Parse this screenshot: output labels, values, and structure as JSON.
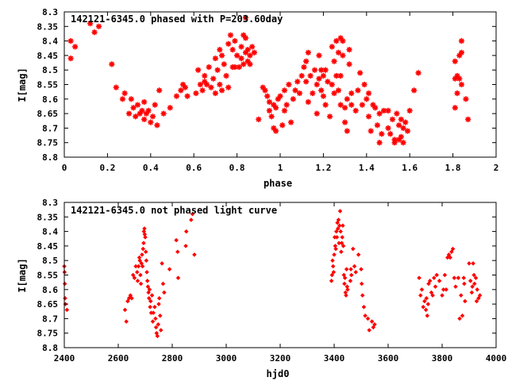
{
  "chart_data": [
    {
      "type": "scatter",
      "title": "142121-6345.0 phased with P=203.60day",
      "xlabel": "phase",
      "ylabel": "I[mag]",
      "xlim": [
        0,
        2
      ],
      "ylim": [
        8.3,
        8.8
      ],
      "y_inverted": true,
      "grid": false,
      "marker": "asterisk",
      "color": "#ff0000",
      "x_ticks": [
        "0",
        "0.2",
        "0.4",
        "0.6",
        "0.8",
        "1",
        "1.2",
        "1.4",
        "1.6",
        "1.8",
        "2"
      ],
      "y_ticks": [
        "8.3",
        "8.35",
        "8.4",
        "8.45",
        "8.5",
        "8.55",
        "8.6",
        "8.65",
        "8.7",
        "8.75",
        "8.8"
      ],
      "points": [
        [
          0.03,
          8.4
        ],
        [
          0.03,
          8.46
        ],
        [
          0.05,
          8.42
        ],
        [
          0.12,
          8.34
        ],
        [
          0.14,
          8.37
        ],
        [
          0.16,
          8.35
        ],
        [
          0.22,
          8.48
        ],
        [
          0.24,
          8.56
        ],
        [
          0.27,
          8.6
        ],
        [
          0.28,
          8.58
        ],
        [
          0.3,
          8.65
        ],
        [
          0.31,
          8.6
        ],
        [
          0.32,
          8.63
        ],
        [
          0.33,
          8.66
        ],
        [
          0.34,
          8.62
        ],
        [
          0.35,
          8.65
        ],
        [
          0.36,
          8.64
        ],
        [
          0.37,
          8.61
        ],
        [
          0.37,
          8.67
        ],
        [
          0.38,
          8.65
        ],
        [
          0.39,
          8.64
        ],
        [
          0.4,
          8.68
        ],
        [
          0.41,
          8.66
        ],
        [
          0.42,
          8.62
        ],
        [
          0.43,
          8.69
        ],
        [
          0.44,
          8.57
        ],
        [
          0.46,
          8.65
        ],
        [
          0.49,
          8.63
        ],
        [
          0.52,
          8.59
        ],
        [
          0.54,
          8.57
        ],
        [
          0.55,
          8.55
        ],
        [
          0.56,
          8.56
        ],
        [
          0.57,
          8.59
        ],
        [
          0.61,
          8.58
        ],
        [
          0.62,
          8.5
        ],
        [
          0.63,
          8.55
        ],
        [
          0.64,
          8.57
        ],
        [
          0.65,
          8.54
        ],
        [
          0.65,
          8.52
        ],
        [
          0.66,
          8.55
        ],
        [
          0.67,
          8.49
        ],
        [
          0.68,
          8.56
        ],
        [
          0.69,
          8.53
        ],
        [
          0.7,
          8.46
        ],
        [
          0.7,
          8.58
        ],
        [
          0.71,
          8.5
        ],
        [
          0.72,
          8.55
        ],
        [
          0.72,
          8.43
        ],
        [
          0.73,
          8.57
        ],
        [
          0.73,
          8.45
        ],
        [
          0.74,
          8.48
        ],
        [
          0.75,
          8.52
        ],
        [
          0.76,
          8.41
        ],
        [
          0.76,
          8.56
        ],
        [
          0.77,
          8.38
        ],
        [
          0.78,
          8.49
        ],
        [
          0.78,
          8.43
        ],
        [
          0.79,
          8.4
        ],
        [
          0.79,
          8.49
        ],
        [
          0.8,
          8.45
        ],
        [
          0.81,
          8.49
        ],
        [
          0.82,
          8.46
        ],
        [
          0.82,
          8.42
        ],
        [
          0.83,
          8.48
        ],
        [
          0.83,
          8.38
        ],
        [
          0.84,
          8.44
        ],
        [
          0.84,
          8.32
        ],
        [
          0.84,
          8.39
        ],
        [
          0.85,
          8.47
        ],
        [
          0.85,
          8.43
        ],
        [
          0.86,
          8.45
        ],
        [
          0.86,
          8.48
        ],
        [
          0.87,
          8.42
        ],
        [
          0.88,
          8.44
        ],
        [
          0.9,
          8.67
        ],
        [
          0.92,
          8.56
        ],
        [
          0.93,
          8.57
        ],
        [
          0.94,
          8.59
        ],
        [
          0.95,
          8.64
        ],
        [
          0.95,
          8.61
        ],
        [
          0.96,
          8.66
        ],
        [
          0.97,
          8.62
        ],
        [
          0.97,
          8.7
        ],
        [
          0.98,
          8.71
        ],
        [
          0.98,
          8.63
        ],
        [
          0.99,
          8.6
        ],
        [
          1.0,
          8.59
        ],
        [
          1.01,
          8.69
        ],
        [
          1.02,
          8.64
        ],
        [
          1.02,
          8.57
        ],
        [
          1.03,
          8.62
        ],
        [
          1.04,
          8.55
        ],
        [
          1.05,
          8.68
        ],
        [
          1.06,
          8.6
        ],
        [
          1.07,
          8.57
        ],
        [
          1.08,
          8.54
        ],
        [
          1.09,
          8.58
        ],
        [
          1.1,
          8.52
        ],
        [
          1.11,
          8.49
        ],
        [
          1.12,
          8.54
        ],
        [
          1.12,
          8.47
        ],
        [
          1.13,
          8.61
        ],
        [
          1.13,
          8.44
        ],
        [
          1.14,
          8.52
        ],
        [
          1.15,
          8.58
        ],
        [
          1.16,
          8.5
        ],
        [
          1.17,
          8.55
        ],
        [
          1.17,
          8.65
        ],
        [
          1.18,
          8.53
        ],
        [
          1.18,
          8.45
        ],
        [
          1.19,
          8.5
        ],
        [
          1.19,
          8.57
        ],
        [
          1.2,
          8.52
        ],
        [
          1.2,
          8.59
        ],
        [
          1.21,
          8.5
        ],
        [
          1.21,
          8.62
        ],
        [
          1.22,
          8.54
        ],
        [
          1.23,
          8.66
        ],
        [
          1.24,
          8.42
        ],
        [
          1.24,
          8.55
        ],
        [
          1.25,
          8.58
        ],
        [
          1.25,
          8.47
        ],
        [
          1.26,
          8.52
        ],
        [
          1.26,
          8.4
        ],
        [
          1.27,
          8.44
        ],
        [
          1.27,
          8.57
        ],
        [
          1.28,
          8.39
        ],
        [
          1.28,
          8.62
        ],
        [
          1.28,
          8.52
        ],
        [
          1.29,
          8.4
        ],
        [
          1.29,
          8.45
        ],
        [
          1.3,
          8.68
        ],
        [
          1.3,
          8.63
        ],
        [
          1.31,
          8.71
        ],
        [
          1.31,
          8.6
        ],
        [
          1.32,
          8.43
        ],
        [
          1.32,
          8.48
        ],
        [
          1.33,
          8.58
        ],
        [
          1.33,
          8.62
        ],
        [
          1.35,
          8.64
        ],
        [
          1.36,
          8.57
        ],
        [
          1.37,
          8.51
        ],
        [
          1.38,
          8.62
        ],
        [
          1.39,
          8.55
        ],
        [
          1.4,
          8.6
        ],
        [
          1.41,
          8.58
        ],
        [
          1.41,
          8.66
        ],
        [
          1.42,
          8.71
        ],
        [
          1.43,
          8.62
        ],
        [
          1.44,
          8.63
        ],
        [
          1.45,
          8.69
        ],
        [
          1.46,
          8.75
        ],
        [
          1.46,
          8.65
        ],
        [
          1.47,
          8.72
        ],
        [
          1.48,
          8.64
        ],
        [
          1.5,
          8.64
        ],
        [
          1.5,
          8.7
        ],
        [
          1.51,
          8.72
        ],
        [
          1.52,
          8.67
        ],
        [
          1.53,
          8.74
        ],
        [
          1.53,
          8.75
        ],
        [
          1.54,
          8.65
        ],
        [
          1.55,
          8.69
        ],
        [
          1.55,
          8.74
        ],
        [
          1.56,
          8.73
        ],
        [
          1.56,
          8.67
        ],
        [
          1.57,
          8.75
        ],
        [
          1.57,
          8.7
        ],
        [
          1.58,
          8.68
        ],
        [
          1.59,
          8.71
        ],
        [
          1.6,
          8.64
        ],
        [
          1.62,
          8.57
        ],
        [
          1.64,
          8.51
        ],
        [
          1.81,
          8.63
        ],
        [
          1.81,
          8.53
        ],
        [
          1.81,
          8.47
        ],
        [
          1.82,
          8.52
        ],
        [
          1.82,
          8.58
        ],
        [
          1.83,
          8.53
        ],
        [
          1.83,
          8.45
        ],
        [
          1.84,
          8.4
        ],
        [
          1.84,
          8.44
        ],
        [
          1.84,
          8.55
        ],
        [
          1.86,
          8.6
        ],
        [
          1.87,
          8.67
        ]
      ]
    },
    {
      "type": "scatter",
      "title": "142121-6345.0 not phased light curve",
      "xlabel": "hjd0",
      "ylabel": "I[mag]",
      "xlim": [
        2400,
        4000
      ],
      "ylim": [
        8.3,
        8.8
      ],
      "y_inverted": true,
      "grid": false,
      "marker": "diamond",
      "color": "#ff0000",
      "x_ticks": [
        "2400",
        "2600",
        "2800",
        "3000",
        "3200",
        "3400",
        "3600",
        "3800",
        "4000"
      ],
      "y_ticks": [
        "8.3",
        "8.35",
        "8.4",
        "8.45",
        "8.5",
        "8.55",
        "8.6",
        "8.65",
        "8.7",
        "8.75",
        "8.8"
      ],
      "points": [
        [
          2400,
          8.52
        ],
        [
          2401,
          8.54
        ],
        [
          2402,
          8.58
        ],
        [
          2403,
          8.63
        ],
        [
          2404,
          8.65
        ],
        [
          2410,
          8.67
        ],
        [
          2625,
          8.67
        ],
        [
          2630,
          8.71
        ],
        [
          2635,
          8.64
        ],
        [
          2640,
          8.63
        ],
        [
          2645,
          8.62
        ],
        [
          2650,
          8.63
        ],
        [
          2655,
          8.55
        ],
        [
          2660,
          8.56
        ],
        [
          2665,
          8.52
        ],
        [
          2670,
          8.54
        ],
        [
          2672,
          8.57
        ],
        [
          2675,
          8.52
        ],
        [
          2678,
          8.49
        ],
        [
          2680,
          8.5
        ],
        [
          2682,
          8.55
        ],
        [
          2684,
          8.58
        ],
        [
          2686,
          8.51
        ],
        [
          2688,
          8.48
        ],
        [
          2690,
          8.52
        ],
        [
          2692,
          8.46
        ],
        [
          2694,
          8.44
        ],
        [
          2695,
          8.4
        ],
        [
          2697,
          8.39
        ],
        [
          2698,
          8.41
        ],
        [
          2700,
          8.42
        ],
        [
          2702,
          8.47
        ],
        [
          2704,
          8.5
        ],
        [
          2706,
          8.54
        ],
        [
          2708,
          8.57
        ],
        [
          2710,
          8.59
        ],
        [
          2712,
          8.61
        ],
        [
          2714,
          8.63
        ],
        [
          2716,
          8.6
        ],
        [
          2718,
          8.66
        ],
        [
          2720,
          8.64
        ],
        [
          2722,
          8.68
        ],
        [
          2725,
          8.62
        ],
        [
          2728,
          8.71
        ],
        [
          2730,
          8.68
        ],
        [
          2735,
          8.66
        ],
        [
          2738,
          8.7
        ],
        [
          2740,
          8.73
        ],
        [
          2742,
          8.75
        ],
        [
          2745,
          8.76
        ],
        [
          2748,
          8.72
        ],
        [
          2750,
          8.65
        ],
        [
          2752,
          8.63
        ],
        [
          2755,
          8.69
        ],
        [
          2758,
          8.74
        ],
        [
          2762,
          8.51
        ],
        [
          2766,
          8.58
        ],
        [
          2770,
          8.61
        ],
        [
          2790,
          8.53
        ],
        [
          2815,
          8.43
        ],
        [
          2820,
          8.47
        ],
        [
          2822,
          8.56
        ],
        [
          2850,
          8.45
        ],
        [
          2852,
          8.4
        ],
        [
          2870,
          8.36
        ],
        [
          2875,
          8.34
        ],
        [
          2882,
          8.48
        ],
        [
          3390,
          8.57
        ],
        [
          3392,
          8.55
        ],
        [
          3394,
          8.5
        ],
        [
          3396,
          8.52
        ],
        [
          3398,
          8.54
        ],
        [
          3400,
          8.48
        ],
        [
          3402,
          8.42
        ],
        [
          3404,
          8.45
        ],
        [
          3406,
          8.46
        ],
        [
          3408,
          8.4
        ],
        [
          3410,
          8.42
        ],
        [
          3412,
          8.37
        ],
        [
          3414,
          8.39
        ],
        [
          3416,
          8.36
        ],
        [
          3418,
          8.44
        ],
        [
          3420,
          8.38
        ],
        [
          3422,
          8.33
        ],
        [
          3424,
          8.4
        ],
        [
          3426,
          8.47
        ],
        [
          3428,
          8.44
        ],
        [
          3430,
          8.42
        ],
        [
          3432,
          8.38
        ],
        [
          3434,
          8.45
        ],
        [
          3436,
          8.55
        ],
        [
          3438,
          8.58
        ],
        [
          3440,
          8.56
        ],
        [
          3442,
          8.61
        ],
        [
          3444,
          8.62
        ],
        [
          3446,
          8.53
        ],
        [
          3448,
          8.59
        ],
        [
          3450,
          8.6
        ],
        [
          3460,
          8.57
        ],
        [
          3462,
          8.53
        ],
        [
          3464,
          8.55
        ],
        [
          3470,
          8.46
        ],
        [
          3475,
          8.52
        ],
        [
          3480,
          8.54
        ],
        [
          3490,
          8.48
        ],
        [
          3500,
          8.53
        ],
        [
          3502,
          8.58
        ],
        [
          3505,
          8.62
        ],
        [
          3510,
          8.66
        ],
        [
          3515,
          8.69
        ],
        [
          3525,
          8.7
        ],
        [
          3530,
          8.74
        ],
        [
          3540,
          8.71
        ],
        [
          3545,
          8.73
        ],
        [
          3550,
          8.72
        ],
        [
          3715,
          8.56
        ],
        [
          3720,
          8.62
        ],
        [
          3725,
          8.6
        ],
        [
          3730,
          8.66
        ],
        [
          3735,
          8.64
        ],
        [
          3740,
          8.67
        ],
        [
          3742,
          8.63
        ],
        [
          3745,
          8.69
        ],
        [
          3748,
          8.65
        ],
        [
          3750,
          8.58
        ],
        [
          3755,
          8.57
        ],
        [
          3760,
          8.61
        ],
        [
          3765,
          8.62
        ],
        [
          3770,
          8.56
        ],
        [
          3775,
          8.59
        ],
        [
          3780,
          8.55
        ],
        [
          3790,
          8.57
        ],
        [
          3800,
          8.62
        ],
        [
          3805,
          8.6
        ],
        [
          3810,
          8.55
        ],
        [
          3815,
          8.6
        ],
        [
          3820,
          8.49
        ],
        [
          3825,
          8.48
        ],
        [
          3830,
          8.49
        ],
        [
          3835,
          8.47
        ],
        [
          3840,
          8.46
        ],
        [
          3845,
          8.56
        ],
        [
          3850,
          8.59
        ],
        [
          3860,
          8.56
        ],
        [
          3865,
          8.7
        ],
        [
          3870,
          8.62
        ],
        [
          3875,
          8.69
        ],
        [
          3880,
          8.56
        ],
        [
          3882,
          8.58
        ],
        [
          3885,
          8.64
        ],
        [
          3900,
          8.51
        ],
        [
          3905,
          8.57
        ],
        [
          3910,
          8.61
        ],
        [
          3912,
          8.59
        ],
        [
          3915,
          8.51
        ],
        [
          3918,
          8.55
        ],
        [
          3920,
          8.58
        ],
        [
          3925,
          8.56
        ],
        [
          3928,
          8.64
        ],
        [
          3930,
          8.6
        ],
        [
          3935,
          8.63
        ],
        [
          3940,
          8.62
        ]
      ]
    }
  ]
}
